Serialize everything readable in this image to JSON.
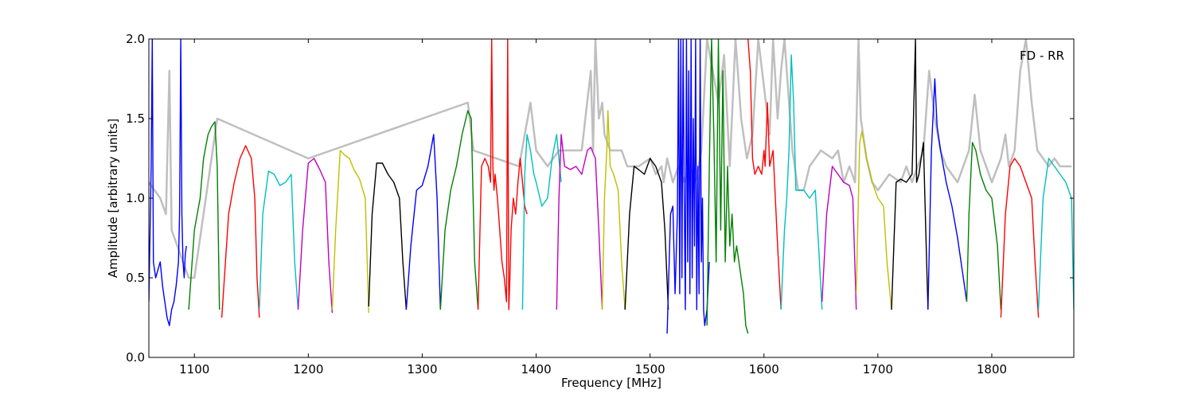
{
  "chart_data": {
    "type": "line",
    "title": "",
    "xlabel": "Frequency [MHz]",
    "ylabel": "Amplitude [arbitrary units]",
    "xlim": [
      1060,
      1872
    ],
    "ylim": [
      0.0,
      2.0
    ],
    "grid": false,
    "annotation": "FD - RR",
    "x_ticks": [
      {
        "value": 1100,
        "label": "1100"
      },
      {
        "value": 1200,
        "label": "1200"
      },
      {
        "value": 1300,
        "label": "1300"
      },
      {
        "value": 1400,
        "label": "1400"
      },
      {
        "value": 1500,
        "label": "1500"
      },
      {
        "value": 1600,
        "label": "1600"
      },
      {
        "value": 1700,
        "label": "1700"
      },
      {
        "value": 1800,
        "label": "1800"
      }
    ],
    "y_ticks": [
      {
        "value": 0.0,
        "label": "0.0"
      },
      {
        "value": 0.5,
        "label": "0.5"
      },
      {
        "value": 1.0,
        "label": "1.0"
      },
      {
        "value": 1.5,
        "label": "1.5"
      },
      {
        "value": 2.0,
        "label": "2.0"
      }
    ],
    "background_series": {
      "color": "#bfbfbf",
      "x": [
        1060,
        1070,
        1075,
        1078,
        1080,
        1085,
        1090,
        1095,
        1100,
        1120,
        1200,
        1340,
        1345,
        1385,
        1390,
        1395,
        1400,
        1410,
        1420,
        1440,
        1448,
        1450,
        1452,
        1455,
        1458,
        1460,
        1465,
        1475,
        1480,
        1490,
        1500,
        1505,
        1510,
        1512,
        1515,
        1520,
        1525,
        1530,
        1535,
        1540,
        1545,
        1550,
        1555,
        1560,
        1565,
        1570,
        1575,
        1580,
        1585,
        1590,
        1595,
        1600,
        1605,
        1608,
        1612,
        1615,
        1618,
        1620,
        1625,
        1630,
        1635,
        1640,
        1650,
        1660,
        1665,
        1670,
        1675,
        1680,
        1683,
        1685,
        1690,
        1695,
        1700,
        1710,
        1720,
        1725,
        1730,
        1735,
        1740,
        1745,
        1750,
        1755,
        1760,
        1770,
        1780,
        1785,
        1790,
        1800,
        1808,
        1812,
        1815,
        1820,
        1825,
        1830,
        1835,
        1840,
        1845,
        1850,
        1855,
        1860,
        1865,
        1870
      ],
      "y": [
        1.1,
        1.0,
        0.9,
        1.8,
        0.8,
        0.7,
        0.6,
        0.5,
        0.5,
        1.5,
        1.25,
        1.6,
        1.3,
        1.2,
        1.4,
        1.6,
        1.3,
        1.2,
        1.3,
        1.3,
        1.8,
        1.3,
        2.0,
        1.5,
        1.6,
        1.4,
        1.3,
        1.3,
        1.2,
        1.2,
        1.25,
        1.15,
        1.2,
        1.1,
        1.25,
        1.1,
        1.2,
        1.1,
        1.2,
        1.1,
        1.3,
        2.0,
        1.8,
        1.6,
        1.9,
        1.2,
        2.0,
        1.5,
        1.25,
        1.4,
        2.0,
        1.7,
        1.4,
        2.0,
        1.5,
        1.8,
        2.0,
        1.8,
        1.3,
        1.05,
        1.05,
        1.2,
        1.3,
        1.25,
        1.3,
        1.1,
        1.2,
        1.1,
        2.0,
        1.5,
        1.25,
        1.1,
        1.05,
        1.15,
        1.1,
        1.2,
        1.1,
        1.2,
        1.3,
        1.8,
        1.5,
        1.3,
        1.2,
        1.1,
        1.3,
        1.65,
        1.3,
        1.1,
        1.25,
        1.4,
        1.2,
        1.3,
        1.8,
        2.0,
        1.6,
        1.3,
        1.25,
        1.2,
        1.25,
        1.2,
        1.2,
        1.2
      ]
    },
    "series": [
      {
        "color": "#0000ff",
        "x": [
          1060,
          1062,
          1063,
          1064,
          1066,
          1068,
          1070,
          1072,
          1074,
          1076,
          1078,
          1080,
          1082,
          1084,
          1086,
          1087,
          1088,
          1089,
          1090,
          1091,
          1092,
          1093
        ],
        "y": [
          0.35,
          1.2,
          2.0,
          0.6,
          0.5,
          0.55,
          0.6,
          0.45,
          0.35,
          0.25,
          0.2,
          0.3,
          0.35,
          0.45,
          0.6,
          0.9,
          2.0,
          0.9,
          0.6,
          0.5,
          0.65,
          0.7
        ]
      },
      {
        "color": "#008000",
        "x": [
          1095,
          1100,
          1105,
          1108,
          1112,
          1115,
          1118,
          1120,
          1122
        ],
        "y": [
          0.3,
          0.8,
          1.0,
          1.25,
          1.4,
          1.45,
          1.48,
          1.2,
          0.3
        ]
      },
      {
        "color": "#ff0000",
        "x": [
          1124,
          1130,
          1135,
          1140,
          1145,
          1150,
          1153,
          1155,
          1157
        ],
        "y": [
          0.25,
          0.9,
          1.1,
          1.25,
          1.33,
          1.25,
          1.0,
          0.5,
          0.25
        ]
      },
      {
        "color": "#00bfbf",
        "x": [
          1157,
          1160,
          1165,
          1170,
          1175,
          1180,
          1185,
          1188,
          1191
        ],
        "y": [
          0.3,
          0.9,
          1.17,
          1.15,
          1.08,
          1.1,
          1.15,
          0.6,
          0.3
        ]
      },
      {
        "color": "#bf00bf",
        "x": [
          1191,
          1195,
          1200,
          1205,
          1210,
          1215,
          1218,
          1221
        ],
        "y": [
          0.3,
          0.8,
          1.22,
          1.25,
          1.18,
          1.1,
          0.6,
          0.28
        ]
      },
      {
        "color": "#bfbf00",
        "x": [
          1221,
          1224,
          1228,
          1232,
          1236,
          1240,
          1245,
          1250,
          1253
        ],
        "y": [
          0.3,
          0.8,
          1.3,
          1.27,
          1.25,
          1.18,
          1.12,
          1.0,
          0.28
        ]
      },
      {
        "color": "#000000",
        "x": [
          1253,
          1256,
          1260,
          1265,
          1270,
          1275,
          1280,
          1283,
          1286
        ],
        "y": [
          0.32,
          0.9,
          1.22,
          1.22,
          1.15,
          1.1,
          1.0,
          0.6,
          0.3
        ]
      },
      {
        "color": "#0000ff",
        "x": [
          1286,
          1290,
          1295,
          1300,
          1305,
          1310,
          1313,
          1316
        ],
        "y": [
          0.3,
          0.7,
          1.05,
          1.08,
          1.2,
          1.4,
          1.0,
          0.3
        ]
      },
      {
        "color": "#008000",
        "x": [
          1316,
          1320,
          1325,
          1330,
          1335,
          1340,
          1343,
          1346,
          1349
        ],
        "y": [
          0.3,
          0.8,
          1.05,
          1.2,
          1.4,
          1.55,
          1.5,
          0.6,
          0.3
        ]
      },
      {
        "color": "#ff0000",
        "x": [
          1349,
          1352,
          1355,
          1358,
          1360,
          1361,
          1362,
          1363,
          1364,
          1366,
          1368,
          1370,
          1372,
          1374,
          1375,
          1376,
          1377,
          1378,
          1380,
          1382,
          1384,
          1386,
          1388,
          1390,
          1392
        ],
        "y": [
          0.3,
          1.2,
          1.25,
          1.2,
          1.1,
          2.0,
          1.2,
          1.05,
          1.15,
          1.0,
          0.8,
          0.6,
          0.5,
          0.35,
          2.0,
          0.3,
          0.5,
          0.8,
          1.0,
          0.9,
          1.1,
          1.25,
          1.1,
          0.95,
          0.9
        ]
      },
      {
        "color": "#00bfbf",
        "x": [
          1388,
          1390,
          1392,
          1395,
          1398,
          1400,
          1405,
          1410,
          1414,
          1418,
          1422
        ],
        "y": [
          0.3,
          1.15,
          1.4,
          1.3,
          1.15,
          1.1,
          0.95,
          1.0,
          1.25,
          1.4,
          1.1
        ]
      },
      {
        "color": "#bf00bf",
        "x": [
          1418,
          1420,
          1422,
          1425,
          1430,
          1435,
          1440,
          1445,
          1448,
          1452,
          1455,
          1458
        ],
        "y": [
          0.3,
          1.0,
          1.4,
          1.2,
          1.18,
          1.2,
          1.15,
          1.3,
          1.32,
          1.25,
          0.8,
          0.3
        ]
      },
      {
        "color": "#bfbf00",
        "x": [
          1458,
          1460,
          1462,
          1463,
          1465,
          1468,
          1472,
          1475,
          1478
        ],
        "y": [
          0.3,
          1.0,
          1.3,
          1.55,
          1.2,
          1.15,
          1.05,
          0.6,
          0.3
        ]
      },
      {
        "color": "#000000",
        "x": [
          1478,
          1482,
          1486,
          1490,
          1495,
          1500,
          1505,
          1510,
          1513,
          1516
        ],
        "y": [
          0.3,
          0.9,
          1.2,
          1.18,
          1.15,
          1.25,
          1.2,
          1.1,
          0.8,
          0.3
        ]
      },
      {
        "color": "#0000ff",
        "x": [
          1515,
          1518,
          1520,
          1522,
          1524,
          1525,
          1526,
          1527,
          1528,
          1529,
          1530,
          1531,
          1532,
          1533,
          1534,
          1535,
          1536,
          1537,
          1538,
          1539,
          1540,
          1541,
          1542,
          1543,
          1544,
          1545,
          1546,
          1547,
          1548,
          1550,
          1552
        ],
        "y": [
          0.15,
          0.9,
          0.95,
          0.4,
          0.9,
          2.0,
          0.4,
          2.0,
          0.5,
          2.0,
          1.0,
          0.3,
          2.0,
          0.6,
          1.8,
          0.4,
          2.0,
          0.5,
          1.5,
          0.7,
          2.0,
          0.3,
          1.2,
          0.4,
          2.0,
          0.6,
          1.0,
          0.3,
          0.2,
          0.3,
          0.6
        ]
      },
      {
        "color": "#008000",
        "x": [
          1550,
          1552,
          1554,
          1556,
          1558,
          1560,
          1562,
          1564,
          1566,
          1568,
          1570,
          1572,
          1574,
          1576,
          1578,
          1580,
          1582,
          1584,
          1586
        ],
        "y": [
          0.2,
          1.2,
          2.0,
          1.4,
          0.6,
          2.0,
          0.8,
          1.8,
          0.6,
          1.2,
          0.7,
          0.9,
          0.6,
          0.7,
          0.6,
          0.5,
          0.4,
          0.2,
          0.15
        ]
      },
      {
        "color": "#ff0000",
        "x": [
          1586,
          1588,
          1590,
          1592,
          1595,
          1598,
          1600,
          1601,
          1603,
          1605,
          1608,
          1612,
          1615
        ],
        "y": [
          2.0,
          1.8,
          1.25,
          1.15,
          1.2,
          1.15,
          1.3,
          1.2,
          1.6,
          1.2,
          1.3,
          0.7,
          0.3
        ]
      },
      {
        "color": "#00bfbf",
        "x": [
          1615,
          1618,
          1620,
          1622,
          1624,
          1626,
          1628,
          1630,
          1635,
          1640,
          1645,
          1648,
          1651
        ],
        "y": [
          0.3,
          0.8,
          1.0,
          1.3,
          1.9,
          1.6,
          1.05,
          1.05,
          1.05,
          1.0,
          1.05,
          0.7,
          0.3
        ]
      },
      {
        "color": "#bf00bf",
        "x": [
          1651,
          1655,
          1660,
          1665,
          1670,
          1675,
          1678,
          1681
        ],
        "y": [
          0.35,
          0.9,
          1.2,
          1.15,
          1.1,
          1.08,
          1.0,
          0.3
        ]
      },
      {
        "color": "#bfbf00",
        "x": [
          1681,
          1684,
          1686,
          1690,
          1695,
          1700,
          1705,
          1708,
          1712
        ],
        "y": [
          0.4,
          1.35,
          1.42,
          1.25,
          1.1,
          1.0,
          0.95,
          0.6,
          0.3
        ]
      },
      {
        "color": "#000000",
        "x": [
          1712,
          1716,
          1720,
          1725,
          1730,
          1733,
          1734,
          1736,
          1740,
          1742,
          1744
        ],
        "y": [
          0.3,
          1.1,
          1.12,
          1.1,
          1.15,
          2.0,
          1.1,
          1.15,
          1.35,
          0.8,
          0.3
        ]
      },
      {
        "color": "#0000ff",
        "x": [
          1744,
          1747,
          1750,
          1752,
          1755,
          1760,
          1765,
          1770,
          1775,
          1778
        ],
        "y": [
          0.3,
          1.3,
          1.75,
          1.45,
          1.3,
          1.1,
          0.95,
          0.75,
          0.5,
          0.35
        ]
      },
      {
        "color": "#008000",
        "x": [
          1778,
          1780,
          1783,
          1786,
          1790,
          1795,
          1800,
          1805,
          1808
        ],
        "y": [
          0.35,
          0.9,
          1.35,
          1.3,
          1.15,
          1.05,
          1.0,
          0.7,
          0.3
        ]
      },
      {
        "color": "#ff0000",
        "x": [
          1808,
          1812,
          1816,
          1820,
          1825,
          1830,
          1835,
          1838,
          1841
        ],
        "y": [
          0.25,
          0.9,
          1.2,
          1.25,
          1.2,
          1.1,
          1.0,
          0.6,
          0.25
        ]
      },
      {
        "color": "#00bfbf",
        "x": [
          1841,
          1845,
          1850,
          1855,
          1860,
          1865,
          1870,
          1872
        ],
        "y": [
          0.3,
          1.0,
          1.25,
          1.2,
          1.15,
          1.1,
          1.0,
          0.3
        ]
      }
    ]
  }
}
